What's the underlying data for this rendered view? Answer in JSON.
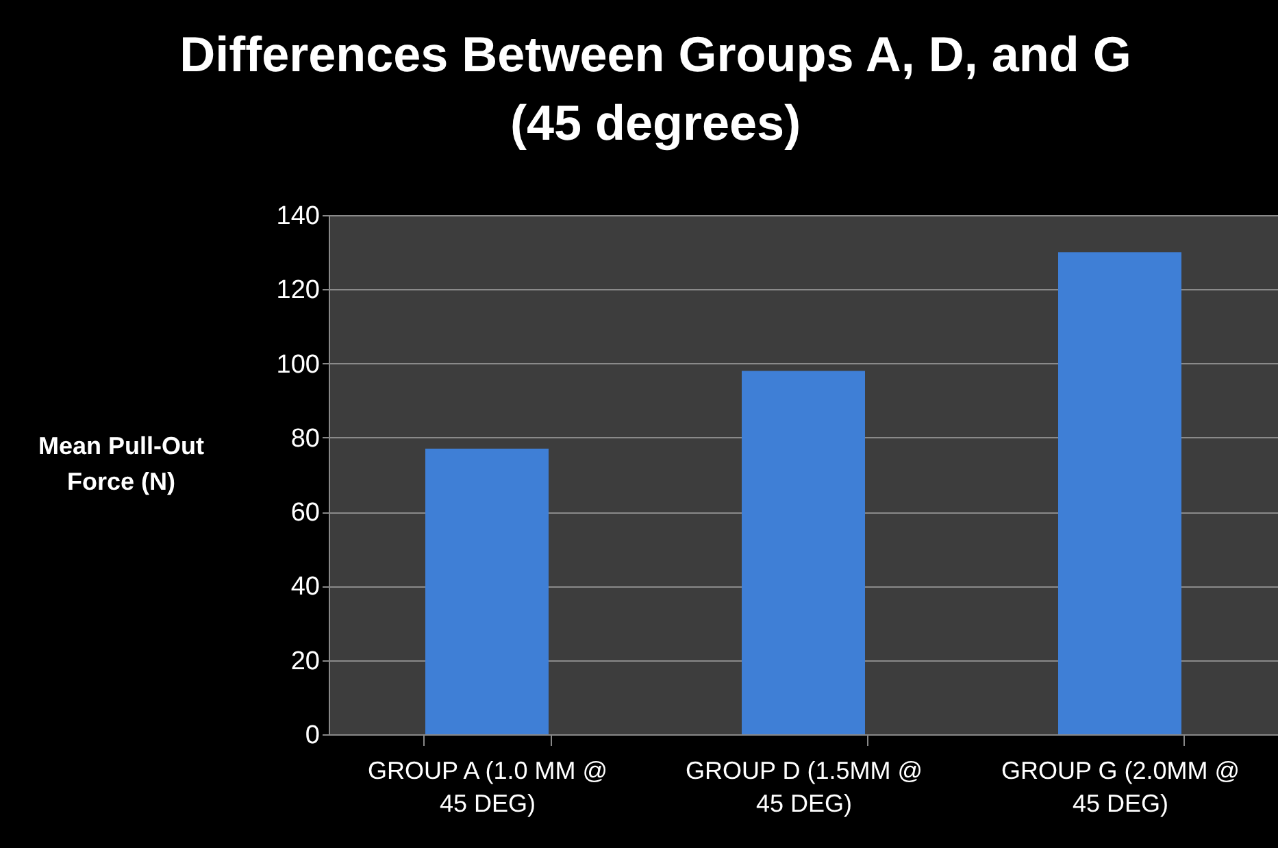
{
  "chart_data": {
    "type": "bar",
    "title": "Differences Between Groups A, D, and G (45 degrees)",
    "ylabel": "Mean Pull-Out Force (N)",
    "categories": [
      "GROUP A (1.0 MM @ 45 DEG)",
      "GROUP D (1.5MM @ 45 DEG)",
      "GROUP G (2.0MM @ 45 DEG)"
    ],
    "values": [
      77,
      98,
      130
    ],
    "color": "#3f7fd6",
    "ylim": [
      0,
      140
    ],
    "yticks": [
      0,
      20,
      40,
      60,
      80,
      100,
      120,
      140
    ],
    "grid": "y"
  }
}
